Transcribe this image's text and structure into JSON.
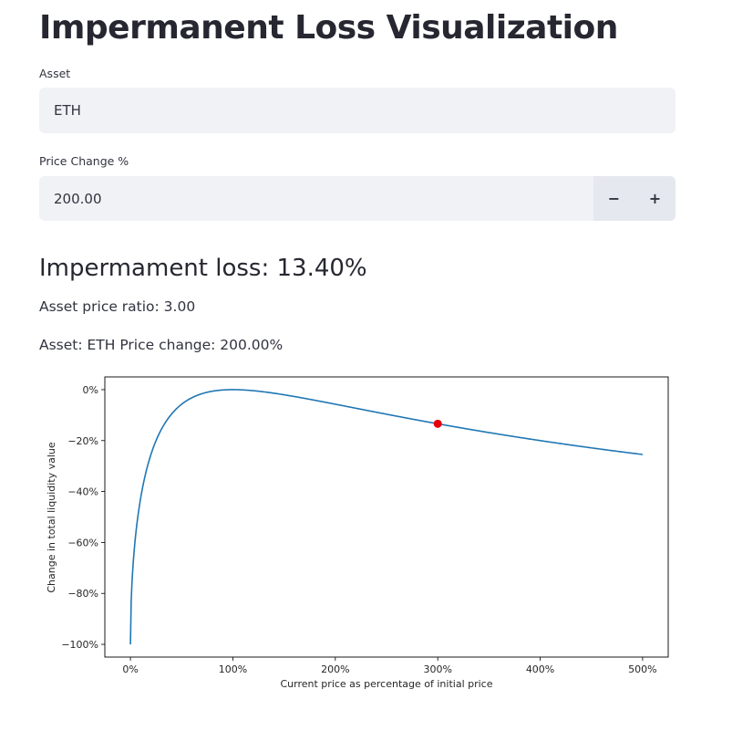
{
  "page": {
    "title": "Impermanent Loss Visualization"
  },
  "asset_field": {
    "label": "Asset",
    "value": "ETH"
  },
  "price_change_field": {
    "label": "Price Change %",
    "value": "200.00",
    "decrement_label": "−",
    "increment_label": "+"
  },
  "results": {
    "loss_heading": "Impermament loss: 13.40%",
    "ratio_line": "Asset price ratio: 3.00",
    "asset_line": "Asset: ETH Price change: 200.00%"
  },
  "colors": {
    "line": "#1f77b4",
    "marker": "#e8000b",
    "input_bg": "#f0f2f6",
    "stepper_bg": "#e5e8ee"
  },
  "chart_data": {
    "type": "line",
    "title": "",
    "xlabel": "Current price as percentage of initial price",
    "ylabel": "Change in total liquidity value",
    "xlim": [
      -25,
      525
    ],
    "ylim": [
      -105,
      5
    ],
    "x_ticks": [
      0,
      100,
      200,
      300,
      400,
      500
    ],
    "x_tick_labels": [
      "0%",
      "100%",
      "200%",
      "300%",
      "400%",
      "500%"
    ],
    "y_ticks": [
      0,
      -20,
      -40,
      -60,
      -80,
      -100
    ],
    "y_tick_labels": [
      "0%",
      "−20%",
      "−40%",
      "−60%",
      "−80%",
      "−100%"
    ],
    "grid": false,
    "series": [
      {
        "formula": "100*(2*sqrt(r)/(1+r) - 1), r = x/100",
        "x_range": [
          0,
          500
        ]
      }
    ],
    "marker": {
      "x": 300,
      "y": -13.4
    }
  }
}
